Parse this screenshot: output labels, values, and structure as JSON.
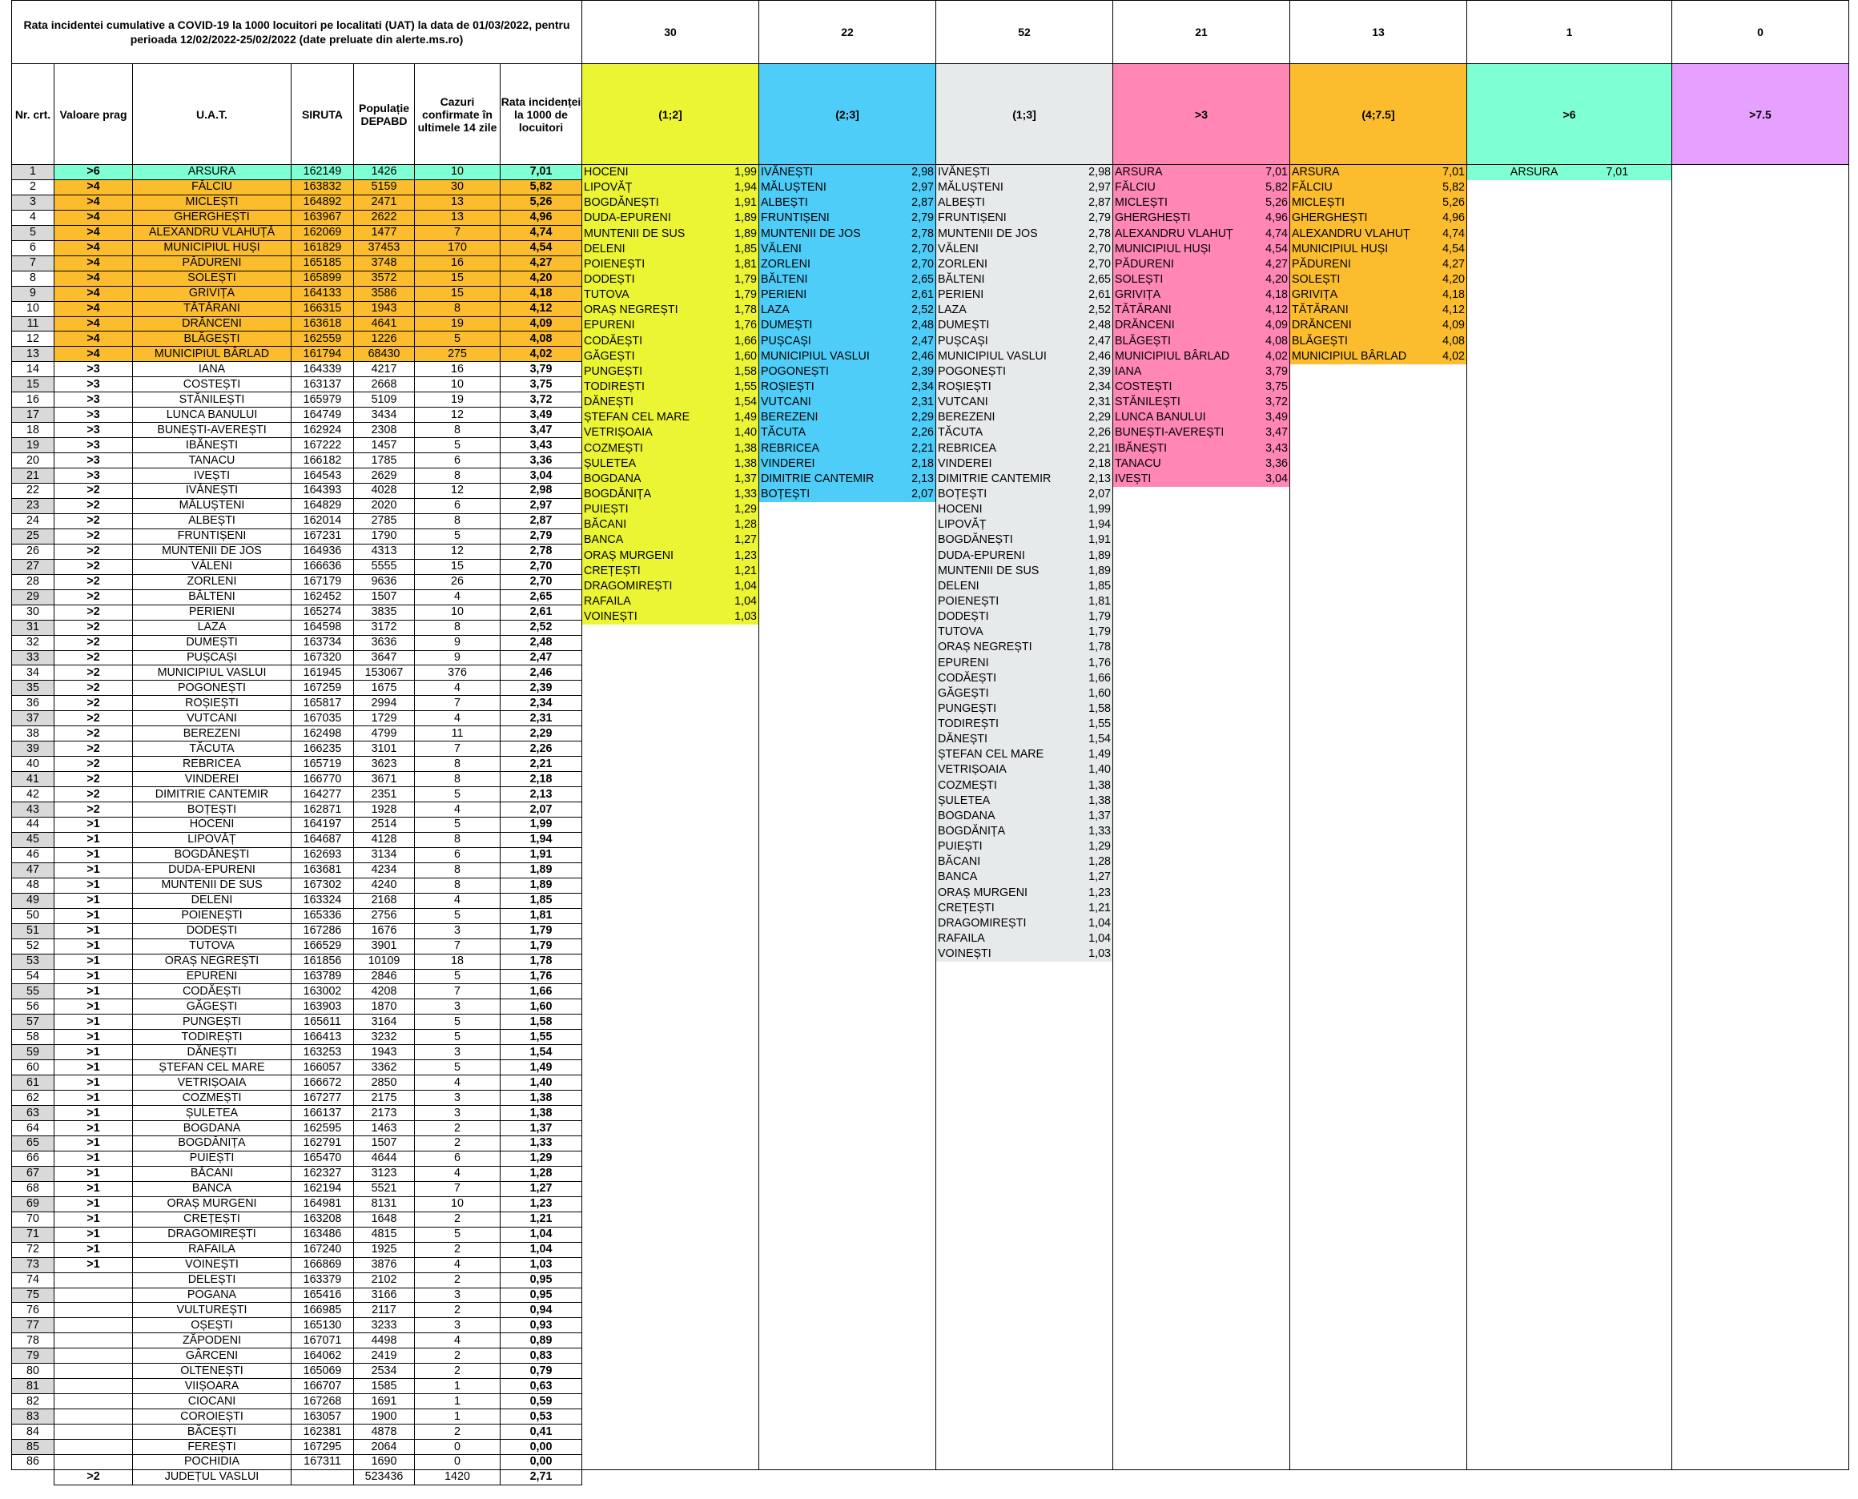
{
  "title": "Rata incidentei cumulative a COVID-19 la 1000 locuitori pe localitati (UAT) la data de 01/03/2022, pentru perioada 12/02/2022-25/02/2022 (date preluate din alerte.ms.ro)",
  "headers": {
    "nr": "Nr. crt.",
    "prag": "Valoare prag",
    "uat": "U.A.T.",
    "siruta": "SIRUTA",
    "pop": "Populație DEPABD",
    "cazuri": "Cazuri confirmate în ultimele 14 zile",
    "rata": "Rata incidenței la 1000 de locuitori"
  },
  "colors": {
    "green": "#7fffd4",
    "orange": "#fbbd2e",
    "yellow": "#ebf534",
    "blue": "#4ecdf8",
    "lightgrey": "#e6eaea",
    "pink": "#ff86b5",
    "violet": "#e6a0ff",
    "grey": "#d9d9d9"
  },
  "rows": [
    [
      "1",
      ">6",
      "ARSURA",
      "162149",
      "1426",
      "10",
      "7,01"
    ],
    [
      "2",
      ">4",
      "FĂLCIU",
      "163832",
      "5159",
      "30",
      "5,82"
    ],
    [
      "3",
      ">4",
      "MICLEȘTI",
      "164892",
      "2471",
      "13",
      "5,26"
    ],
    [
      "4",
      ">4",
      "GHERGHEȘTI",
      "163967",
      "2622",
      "13",
      "4,96"
    ],
    [
      "5",
      ">4",
      "ALEXANDRU VLAHUȚĂ",
      "162069",
      "1477",
      "7",
      "4,74"
    ],
    [
      "6",
      ">4",
      "MUNICIPIUL HUȘI",
      "161829",
      "37453",
      "170",
      "4,54"
    ],
    [
      "7",
      ">4",
      "PĂDURENI",
      "165185",
      "3748",
      "16",
      "4,27"
    ],
    [
      "8",
      ">4",
      "SOLEȘTI",
      "165899",
      "3572",
      "15",
      "4,20"
    ],
    [
      "9",
      ">4",
      "GRIVIȚA",
      "164133",
      "3586",
      "15",
      "4,18"
    ],
    [
      "10",
      ">4",
      "TĂTĂRANI",
      "166315",
      "1943",
      "8",
      "4,12"
    ],
    [
      "11",
      ">4",
      "DRĂNCENI",
      "163618",
      "4641",
      "19",
      "4,09"
    ],
    [
      "12",
      ">4",
      "BLĂGEȘTI",
      "162559",
      "1226",
      "5",
      "4,08"
    ],
    [
      "13",
      ">4",
      "MUNICIPIUL BÂRLAD",
      "161794",
      "68430",
      "275",
      "4,02"
    ],
    [
      "14",
      ">3",
      "IANA",
      "164339",
      "4217",
      "16",
      "3,79"
    ],
    [
      "15",
      ">3",
      "COSTEȘTI",
      "163137",
      "2668",
      "10",
      "3,75"
    ],
    [
      "16",
      ">3",
      "STĂNILEȘTI",
      "165979",
      "5109",
      "19",
      "3,72"
    ],
    [
      "17",
      ">3",
      "LUNCA BANULUI",
      "164749",
      "3434",
      "12",
      "3,49"
    ],
    [
      "18",
      ">3",
      "BUNEȘTI-AVEREȘTI",
      "162924",
      "2308",
      "8",
      "3,47"
    ],
    [
      "19",
      ">3",
      "IBĂNEȘTI",
      "167222",
      "1457",
      "5",
      "3,43"
    ],
    [
      "20",
      ">3",
      "TANACU",
      "166182",
      "1785",
      "6",
      "3,36"
    ],
    [
      "21",
      ">3",
      "IVEȘTI",
      "164543",
      "2629",
      "8",
      "3,04"
    ],
    [
      "22",
      ">2",
      "IVĂNEȘTI",
      "164393",
      "4028",
      "12",
      "2,98"
    ],
    [
      "23",
      ">2",
      "MĂLUȘTENI",
      "164829",
      "2020",
      "6",
      "2,97"
    ],
    [
      "24",
      ">2",
      "ALBEȘTI",
      "162014",
      "2785",
      "8",
      "2,87"
    ],
    [
      "25",
      ">2",
      "FRUNTIȘENI",
      "167231",
      "1790",
      "5",
      "2,79"
    ],
    [
      "26",
      ">2",
      "MUNTENII DE JOS",
      "164936",
      "4313",
      "12",
      "2,78"
    ],
    [
      "27",
      ">2",
      "VĂLENI",
      "166636",
      "5555",
      "15",
      "2,70"
    ],
    [
      "28",
      ">2",
      "ZORLENI",
      "167179",
      "9636",
      "26",
      "2,70"
    ],
    [
      "29",
      ">2",
      "BĂLTENI",
      "162452",
      "1507",
      "4",
      "2,65"
    ],
    [
      "30",
      ">2",
      "PERIENI",
      "165274",
      "3835",
      "10",
      "2,61"
    ],
    [
      "31",
      ">2",
      "LAZA",
      "164598",
      "3172",
      "8",
      "2,52"
    ],
    [
      "32",
      ">2",
      "DUMEȘTI",
      "163734",
      "3636",
      "9",
      "2,48"
    ],
    [
      "33",
      ">2",
      "PUȘCAȘI",
      "167320",
      "3647",
      "9",
      "2,47"
    ],
    [
      "34",
      ">2",
      "MUNICIPIUL VASLUI",
      "161945",
      "153067",
      "376",
      "2,46"
    ],
    [
      "35",
      ">2",
      "POGONEȘTI",
      "167259",
      "1675",
      "4",
      "2,39"
    ],
    [
      "36",
      ">2",
      "ROȘIEȘTI",
      "165817",
      "2994",
      "7",
      "2,34"
    ],
    [
      "37",
      ">2",
      "VUTCANI",
      "167035",
      "1729",
      "4",
      "2,31"
    ],
    [
      "38",
      ">2",
      "BEREZENI",
      "162498",
      "4799",
      "11",
      "2,29"
    ],
    [
      "39",
      ">2",
      "TĂCUTA",
      "166235",
      "3101",
      "7",
      "2,26"
    ],
    [
      "40",
      ">2",
      "REBRICEA",
      "165719",
      "3623",
      "8",
      "2,21"
    ],
    [
      "41",
      ">2",
      "VINDEREI",
      "166770",
      "3671",
      "8",
      "2,18"
    ],
    [
      "42",
      ">2",
      "DIMITRIE CANTEMIR",
      "164277",
      "2351",
      "5",
      "2,13"
    ],
    [
      "43",
      ">2",
      "BOȚEȘTI",
      "162871",
      "1928",
      "4",
      "2,07"
    ],
    [
      "44",
      ">1",
      "HOCENI",
      "164197",
      "2514",
      "5",
      "1,99"
    ],
    [
      "45",
      ">1",
      "LIPOVĂȚ",
      "164687",
      "4128",
      "8",
      "1,94"
    ],
    [
      "46",
      ">1",
      "BOGDĂNEȘTI",
      "162693",
      "3134",
      "6",
      "1,91"
    ],
    [
      "47",
      ">1",
      "DUDA-EPURENI",
      "163681",
      "4234",
      "8",
      "1,89"
    ],
    [
      "48",
      ">1",
      "MUNTENII DE SUS",
      "167302",
      "4240",
      "8",
      "1,89"
    ],
    [
      "49",
      ">1",
      "DELENI",
      "163324",
      "2168",
      "4",
      "1,85"
    ],
    [
      "50",
      ">1",
      "POIENEȘTI",
      "165336",
      "2756",
      "5",
      "1,81"
    ],
    [
      "51",
      ">1",
      "DODEȘTI",
      "167286",
      "1676",
      "3",
      "1,79"
    ],
    [
      "52",
      ">1",
      "TUTOVA",
      "166529",
      "3901",
      "7",
      "1,79"
    ],
    [
      "53",
      ">1",
      "ORAȘ NEGREȘTI",
      "161856",
      "10109",
      "18",
      "1,78"
    ],
    [
      "54",
      ">1",
      "EPURENI",
      "163789",
      "2846",
      "5",
      "1,76"
    ],
    [
      "55",
      ">1",
      "CODĂEȘTI",
      "163002",
      "4208",
      "7",
      "1,66"
    ],
    [
      "56",
      ">1",
      "GĂGEȘTI",
      "163903",
      "1870",
      "3",
      "1,60"
    ],
    [
      "57",
      ">1",
      "PUNGEȘTI",
      "165611",
      "3164",
      "5",
      "1,58"
    ],
    [
      "58",
      ">1",
      "TODIREȘTI",
      "166413",
      "3232",
      "5",
      "1,55"
    ],
    [
      "59",
      ">1",
      "DĂNEȘTI",
      "163253",
      "1943",
      "3",
      "1,54"
    ],
    [
      "60",
      ">1",
      "ȘTEFAN CEL MARE",
      "166057",
      "3362",
      "5",
      "1,49"
    ],
    [
      "61",
      ">1",
      "VETRIȘOAIA",
      "166672",
      "2850",
      "4",
      "1,40"
    ],
    [
      "62",
      ">1",
      "COZMEȘTI",
      "167277",
      "2175",
      "3",
      "1,38"
    ],
    [
      "63",
      ">1",
      "ȘULETEA",
      "166137",
      "2173",
      "3",
      "1,38"
    ],
    [
      "64",
      ">1",
      "BOGDANA",
      "162595",
      "1463",
      "2",
      "1,37"
    ],
    [
      "65",
      ">1",
      "BOGDĂNIȚA",
      "162791",
      "1507",
      "2",
      "1,33"
    ],
    [
      "66",
      ">1",
      "PUIEȘTI",
      "165470",
      "4644",
      "6",
      "1,29"
    ],
    [
      "67",
      ">1",
      "BĂCANI",
      "162327",
      "3123",
      "4",
      "1,28"
    ],
    [
      "68",
      ">1",
      "BANCA",
      "162194",
      "5521",
      "7",
      "1,27"
    ],
    [
      "69",
      ">1",
      "ORAȘ MURGENI",
      "164981",
      "8131",
      "10",
      "1,23"
    ],
    [
      "70",
      ">1",
      "CREȚEȘTI",
      "163208",
      "1648",
      "2",
      "1,21"
    ],
    [
      "71",
      ">1",
      "DRAGOMIREȘTI",
      "163486",
      "4815",
      "5",
      "1,04"
    ],
    [
      "72",
      ">1",
      "RAFAILA",
      "167240",
      "1925",
      "2",
      "1,04"
    ],
    [
      "73",
      ">1",
      "VOINEȘTI",
      "166869",
      "3876",
      "4",
      "1,03"
    ],
    [
      "74",
      "",
      "DELEȘTI",
      "163379",
      "2102",
      "2",
      "0,95"
    ],
    [
      "75",
      "",
      "POGANA",
      "165416",
      "3166",
      "3",
      "0,95"
    ],
    [
      "76",
      "",
      "VULTUREȘTI",
      "166985",
      "2117",
      "2",
      "0,94"
    ],
    [
      "77",
      "",
      "OȘEȘTI",
      "165130",
      "3233",
      "3",
      "0,93"
    ],
    [
      "78",
      "",
      "ZĂPODENI",
      "167071",
      "4498",
      "4",
      "0,89"
    ],
    [
      "79",
      "",
      "GÂRCENI",
      "164062",
      "2419",
      "2",
      "0,83"
    ],
    [
      "80",
      "",
      "OLTENEȘTI",
      "165069",
      "2534",
      "2",
      "0,79"
    ],
    [
      "81",
      "",
      "VIIȘOARA",
      "166707",
      "1585",
      "1",
      "0,63"
    ],
    [
      "82",
      "",
      "CIOCANI",
      "167268",
      "1691",
      "1",
      "0,59"
    ],
    [
      "83",
      "",
      "COROIEȘTI",
      "163057",
      "1900",
      "1",
      "0,53"
    ],
    [
      "84",
      "",
      "BĂCEȘTI",
      "162381",
      "4878",
      "2",
      "0,41"
    ],
    [
      "85",
      "",
      "FEREȘTI",
      "167295",
      "2064",
      "0",
      "0,00"
    ],
    [
      "86",
      "",
      "POCHIDIA",
      "167311",
      "1690",
      "0",
      "0,00"
    ]
  ],
  "total": {
    "prag": ">2",
    "uat": "JUDEȚUL VASLUI",
    "pop": "523436",
    "cazuri": "1420",
    "rata": "2,71"
  },
  "categories": [
    {
      "count": "30",
      "label": "(1;2]",
      "color": "#ebf534",
      "items": [
        [
          "HOCENI",
          "1,99"
        ],
        [
          "LIPOVĂȚ",
          "1,94"
        ],
        [
          "BOGDĂNEȘTI",
          "1,91"
        ],
        [
          "DUDA-EPURENI",
          "1,89"
        ],
        [
          "MUNTENII DE SUS",
          "1,89"
        ],
        [
          "DELENI",
          "1,85"
        ],
        [
          "POIENEȘTI",
          "1,81"
        ],
        [
          "DODEȘTI",
          "1,79"
        ],
        [
          "TUTOVA",
          "1,79"
        ],
        [
          "ORAȘ NEGREȘTI",
          "1,78"
        ],
        [
          "EPURENI",
          "1,76"
        ],
        [
          "CODĂEȘTI",
          "1,66"
        ],
        [
          "GĂGEȘTI",
          "1,60"
        ],
        [
          "PUNGEȘTI",
          "1,58"
        ],
        [
          "TODIREȘTI",
          "1,55"
        ],
        [
          "DĂNEȘTI",
          "1,54"
        ],
        [
          "ȘTEFAN CEL MARE",
          "1,49"
        ],
        [
          "VETRIȘOAIA",
          "1,40"
        ],
        [
          "COZMEȘTI",
          "1,38"
        ],
        [
          "ȘULETEA",
          "1,38"
        ],
        [
          "BOGDANA",
          "1,37"
        ],
        [
          "BOGDĂNIȚA",
          "1,33"
        ],
        [
          "PUIEȘTI",
          "1,29"
        ],
        [
          "BĂCANI",
          "1,28"
        ],
        [
          "BANCA",
          "1,27"
        ],
        [
          "ORAȘ MURGENI",
          "1,23"
        ],
        [
          "CREȚEȘTI",
          "1,21"
        ],
        [
          "DRAGOMIREȘTI",
          "1,04"
        ],
        [
          "RAFAILA",
          "1,04"
        ],
        [
          "VOINEȘTI",
          "1,03"
        ]
      ]
    },
    {
      "count": "22",
      "label": "(2;3]",
      "color": "#4ecdf8",
      "items": [
        [
          "IVĂNEȘTI",
          "2,98"
        ],
        [
          "MĂLUȘTENI",
          "2,97"
        ],
        [
          "ALBEȘTI",
          "2,87"
        ],
        [
          "FRUNTIȘENI",
          "2,79"
        ],
        [
          "MUNTENII DE JOS",
          "2,78"
        ],
        [
          "VĂLENI",
          "2,70"
        ],
        [
          "ZORLENI",
          "2,70"
        ],
        [
          "BĂLTENI",
          "2,65"
        ],
        [
          "PERIENI",
          "2,61"
        ],
        [
          "LAZA",
          "2,52"
        ],
        [
          "DUMEȘTI",
          "2,48"
        ],
        [
          "PUȘCAȘI",
          "2,47"
        ],
        [
          "MUNICIPIUL VASLUI",
          "2,46"
        ],
        [
          "POGONEȘTI",
          "2,39"
        ],
        [
          "ROȘIEȘTI",
          "2,34"
        ],
        [
          "VUTCANI",
          "2,31"
        ],
        [
          "BEREZENI",
          "2,29"
        ],
        [
          "TĂCUTA",
          "2,26"
        ],
        [
          "REBRICEA",
          "2,21"
        ],
        [
          "VINDEREI",
          "2,18"
        ],
        [
          "DIMITRIE CANTEMIR",
          "2,13"
        ],
        [
          "BOȚEȘTI",
          "2,07"
        ]
      ]
    },
    {
      "count": "52",
      "label": "(1;3]",
      "color": "#e6eaea",
      "items": [
        [
          "IVĂNEȘTI",
          "2,98"
        ],
        [
          "MĂLUȘTENI",
          "2,97"
        ],
        [
          "ALBEȘTI",
          "2,87"
        ],
        [
          "FRUNTIȘENI",
          "2,79"
        ],
        [
          "MUNTENII DE JOS",
          "2,78"
        ],
        [
          "VĂLENI",
          "2,70"
        ],
        [
          "ZORLENI",
          "2,70"
        ],
        [
          "BĂLTENI",
          "2,65"
        ],
        [
          "PERIENI",
          "2,61"
        ],
        [
          "LAZA",
          "2,52"
        ],
        [
          "DUMEȘTI",
          "2,48"
        ],
        [
          "PUȘCAȘI",
          "2,47"
        ],
        [
          "MUNICIPIUL VASLUI",
          "2,46"
        ],
        [
          "POGONEȘTI",
          "2,39"
        ],
        [
          "ROȘIEȘTI",
          "2,34"
        ],
        [
          "VUTCANI",
          "2,31"
        ],
        [
          "BEREZENI",
          "2,29"
        ],
        [
          "TĂCUTA",
          "2,26"
        ],
        [
          "REBRICEA",
          "2,21"
        ],
        [
          "VINDEREI",
          "2,18"
        ],
        [
          "DIMITRIE CANTEMIR",
          "2,13"
        ],
        [
          "BOȚEȘTI",
          "2,07"
        ],
        [
          "HOCENI",
          "1,99"
        ],
        [
          "LIPOVĂȚ",
          "1,94"
        ],
        [
          "BOGDĂNEȘTI",
          "1,91"
        ],
        [
          "DUDA-EPURENI",
          "1,89"
        ],
        [
          "MUNTENII DE SUS",
          "1,89"
        ],
        [
          "DELENI",
          "1,85"
        ],
        [
          "POIENEȘTI",
          "1,81"
        ],
        [
          "DODEȘTI",
          "1,79"
        ],
        [
          "TUTOVA",
          "1,79"
        ],
        [
          "ORAȘ NEGREȘTI",
          "1,78"
        ],
        [
          "EPURENI",
          "1,76"
        ],
        [
          "CODĂEȘTI",
          "1,66"
        ],
        [
          "GĂGEȘTI",
          "1,60"
        ],
        [
          "PUNGEȘTI",
          "1,58"
        ],
        [
          "TODIREȘTI",
          "1,55"
        ],
        [
          "DĂNEȘTI",
          "1,54"
        ],
        [
          "ȘTEFAN CEL MARE",
          "1,49"
        ],
        [
          "VETRIȘOAIA",
          "1,40"
        ],
        [
          "COZMEȘTI",
          "1,38"
        ],
        [
          "ȘULETEA",
          "1,38"
        ],
        [
          "BOGDANA",
          "1,37"
        ],
        [
          "BOGDĂNIȚA",
          "1,33"
        ],
        [
          "PUIEȘTI",
          "1,29"
        ],
        [
          "BĂCANI",
          "1,28"
        ],
        [
          "BANCA",
          "1,27"
        ],
        [
          "ORAȘ MURGENI",
          "1,23"
        ],
        [
          "CREȚEȘTI",
          "1,21"
        ],
        [
          "DRAGOMIREȘTI",
          "1,04"
        ],
        [
          "RAFAILA",
          "1,04"
        ],
        [
          "VOINEȘTI",
          "1,03"
        ]
      ]
    },
    {
      "count": "21",
      "label": ">3",
      "color": "#ff86b5",
      "items": [
        [
          "ARSURA",
          "7,01"
        ],
        [
          "FĂLCIU",
          "5,82"
        ],
        [
          "MICLEȘTI",
          "5,26"
        ],
        [
          "GHERGHEȘTI",
          "4,96"
        ],
        [
          "ALEXANDRU VLAHUȚ",
          "4,74"
        ],
        [
          "MUNICIPIUL HUȘI",
          "4,54"
        ],
        [
          "PĂDURENI",
          "4,27"
        ],
        [
          "SOLEȘTI",
          "4,20"
        ],
        [
          "GRIVIȚA",
          "4,18"
        ],
        [
          "TĂTĂRANI",
          "4,12"
        ],
        [
          "DRĂNCENI",
          "4,09"
        ],
        [
          "BLĂGEȘTI",
          "4,08"
        ],
        [
          "MUNICIPIUL BÂRLAD",
          "4,02"
        ],
        [
          "IANA",
          "3,79"
        ],
        [
          "COSTEȘTI",
          "3,75"
        ],
        [
          "STĂNILEȘTI",
          "3,72"
        ],
        [
          "LUNCA BANULUI",
          "3,49"
        ],
        [
          "BUNEȘTI-AVEREȘTI",
          "3,47"
        ],
        [
          "IBĂNEȘTI",
          "3,43"
        ],
        [
          "TANACU",
          "3,36"
        ],
        [
          "IVEȘTI",
          "3,04"
        ]
      ]
    },
    {
      "count": "13",
      "label": "(4;7.5]",
      "color": "#fbbd2e",
      "items": [
        [
          "ARSURA",
          "7,01"
        ],
        [
          "FĂLCIU",
          "5,82"
        ],
        [
          "MICLEȘTI",
          "5,26"
        ],
        [
          "GHERGHEȘTI",
          "4,96"
        ],
        [
          "ALEXANDRU VLAHUȚ",
          "4,74"
        ],
        [
          "MUNICIPIUL HUȘI",
          "4,54"
        ],
        [
          "PĂDURENI",
          "4,27"
        ],
        [
          "SOLEȘTI",
          "4,20"
        ],
        [
          "GRIVIȚA",
          "4,18"
        ],
        [
          "TĂTĂRANI",
          "4,12"
        ],
        [
          "DRĂNCENI",
          "4,09"
        ],
        [
          "BLĂGEȘTI",
          "4,08"
        ],
        [
          "MUNICIPIUL BÂRLAD",
          "4,02"
        ]
      ]
    },
    {
      "count": "1",
      "label": ">6",
      "color": "#7fffd4",
      "items": [
        [
          "ARSURA",
          "7,01"
        ]
      ]
    },
    {
      "count": "0",
      "label": ">7.5",
      "color": "#e6a0ff",
      "items": []
    }
  ]
}
